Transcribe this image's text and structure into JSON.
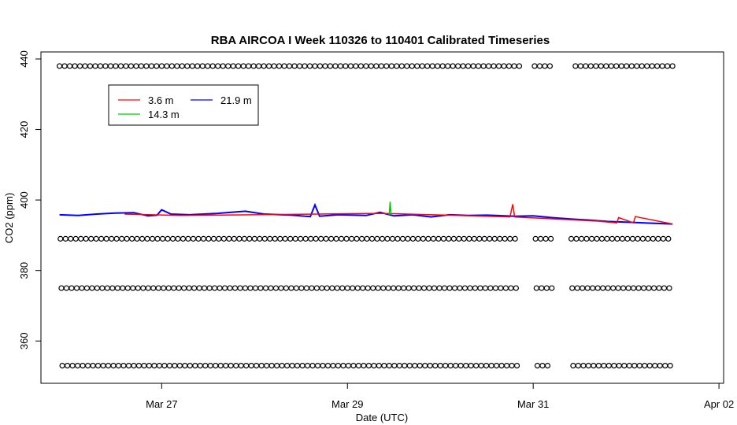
{
  "chart_data": {
    "type": "line",
    "title": "RBA AIRCOA I  Week 110326 to 110401  Calibrated Timeseries",
    "xlabel": "Date (UTC)",
    "ylabel": "CO2 (ppm)",
    "x_ticks": [
      "Mar 27",
      "Mar 29",
      "Mar 31",
      "Apr 02"
    ],
    "y_ticks": [
      360,
      380,
      400,
      420,
      440
    ],
    "xlim_days": [
      25.7,
      33.05
    ],
    "ylim": [
      348,
      442
    ],
    "legend": {
      "placement": "top-left",
      "entries": [
        "3.6 m",
        "21.9 m",
        "14.3 m"
      ]
    },
    "series": [
      {
        "name": "3.6 m",
        "color": "#ff0000",
        "x": [
          26.6,
          27.2,
          28.0,
          29.35,
          29.8,
          30.75,
          30.78,
          30.8,
          31.7,
          31.9,
          31.92,
          32.08,
          32.1,
          32.5
        ],
        "y": [
          396.0,
          395.6,
          395.8,
          396.2,
          395.9,
          395.2,
          398.8,
          395.2,
          394.0,
          393.5,
          395.0,
          393.5,
          395.3,
          393.2
        ]
      },
      {
        "name": "21.9 m",
        "color": "#0000ff",
        "x": [
          25.9,
          26.1,
          26.3,
          26.5,
          26.7,
          26.85,
          26.95,
          27.0,
          27.1,
          27.3,
          27.6,
          27.9,
          28.1,
          28.4,
          28.6,
          28.65,
          28.7,
          28.9,
          29.2,
          29.35,
          29.5,
          29.7,
          29.9,
          30.1,
          30.3,
          30.5,
          30.8,
          31.0,
          31.2,
          31.4,
          31.6,
          31.8,
          32.0,
          32.2,
          32.5
        ],
        "y": [
          395.8,
          395.6,
          396.0,
          396.3,
          396.4,
          395.5,
          395.7,
          397.2,
          396.0,
          395.8,
          396.2,
          396.8,
          396.0,
          395.7,
          395.3,
          398.6,
          395.4,
          395.8,
          395.6,
          396.5,
          395.5,
          395.8,
          395.2,
          395.8,
          395.6,
          395.7,
          395.4,
          395.5,
          395.0,
          394.6,
          394.3,
          393.9,
          393.7,
          393.5,
          393.2
        ]
      },
      {
        "name": "14.3 m",
        "color": "#00cc00",
        "x": [
          29.45,
          29.46,
          29.47
        ],
        "y": [
          395.8,
          399.5,
          395.8
        ]
      }
    ],
    "reference_points": {
      "marker": "circle",
      "levels": [
        438,
        389,
        375,
        353
      ],
      "x_start": 25.9,
      "x_end": 32.5,
      "gaps": [
        [
          30.85,
          31.0
        ],
        [
          31.2,
          31.4
        ]
      ]
    }
  }
}
